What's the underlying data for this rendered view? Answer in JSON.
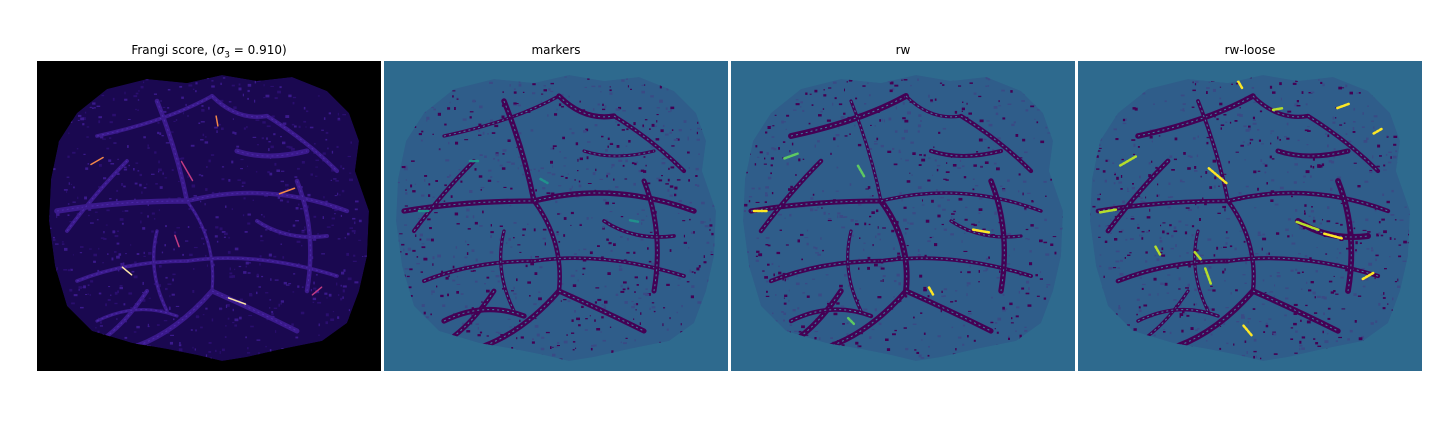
{
  "figure": {
    "panels": [
      {
        "id": "frangi",
        "title_prefix": "Frangi score, (",
        "title_math": "σ",
        "title_sub": "3",
        "title_suffix": " = 0.910)",
        "background": "#000000",
        "vessel_color": "#3b1a8c",
        "texture_color": "#2a0e6e",
        "highlight_colors": [
          "#c13b82",
          "#f48849",
          "#fde6a5"
        ]
      },
      {
        "id": "markers",
        "title": "markers",
        "background": "#2e6a8e",
        "vessel_color": "#440154",
        "texture_color": "#3a4a85",
        "highlight_colors": [
          "#21918c"
        ]
      },
      {
        "id": "rw",
        "title": "rw",
        "background": "#2e6a8e",
        "vessel_color": "#440154",
        "texture_color": "#3a4a85",
        "highlight_colors": [
          "#5ec962",
          "#fde725"
        ]
      },
      {
        "id": "rw-loose",
        "title": "rw-loose",
        "background": "#2e6a8e",
        "vessel_color": "#440154",
        "texture_color": "#3a4a85",
        "highlight_colors": [
          "#b5de2b",
          "#fde725"
        ]
      }
    ]
  }
}
